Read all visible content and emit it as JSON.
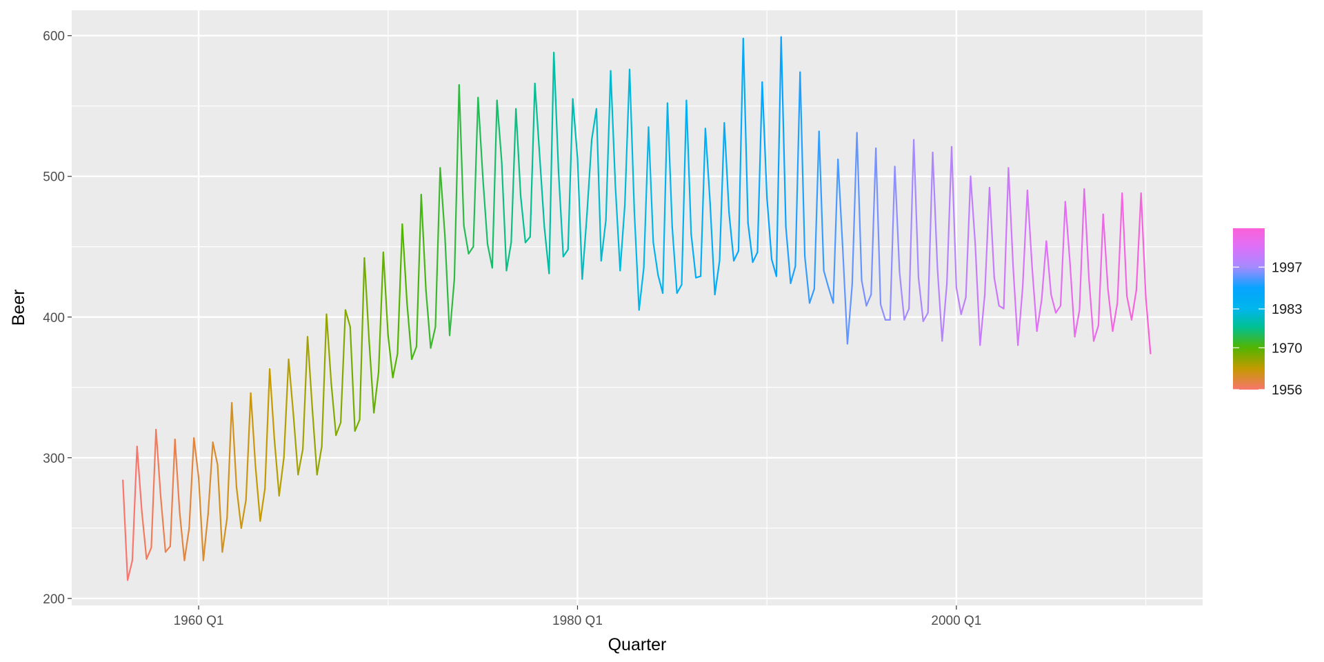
{
  "chart_data": {
    "type": "line",
    "title": "",
    "xlabel": "Quarter",
    "ylabel": "Beer",
    "xlim": [
      1953.3,
      2013.0
    ],
    "ylim": [
      195,
      618
    ],
    "x_ticks": [
      {
        "value": 1960.0,
        "label": "1960 Q1"
      },
      {
        "value": 1980.0,
        "label": "1980 Q1"
      },
      {
        "value": 2000.0,
        "label": "2000 Q1"
      }
    ],
    "x_minor_ticks": [
      1970.0,
      1990.0,
      2010.0
    ],
    "y_ticks": [
      200,
      300,
      400,
      500,
      600
    ],
    "y_minor_ticks": [
      250,
      350,
      450,
      550
    ],
    "grid": true,
    "background": "#ebebeb",
    "grid_color": "#ffffff",
    "colour_scale": {
      "variable": "year",
      "domain": [
        1956,
        2010
      ],
      "stops": [
        {
          "value": 1956,
          "color": "#f8766d"
        },
        {
          "value": 1963,
          "color": "#c49a00"
        },
        {
          "value": 1970,
          "color": "#53b400"
        },
        {
          "value": 1977,
          "color": "#00c094"
        },
        {
          "value": 1983,
          "color": "#00b6eb"
        },
        {
          "value": 1990,
          "color": "#06a4ff"
        },
        {
          "value": 1997,
          "color": "#a58aff"
        },
        {
          "value": 2004,
          "color": "#df70f8"
        },
        {
          "value": 2010,
          "color": "#fb61d7"
        }
      ]
    },
    "legend": {
      "placement": "right",
      "labels": [
        {
          "value": 1956,
          "label": "1956"
        },
        {
          "value": 1970,
          "label": "1970"
        },
        {
          "value": 1983,
          "label": "1983"
        },
        {
          "value": 1997,
          "label": "1997"
        }
      ]
    },
    "series": [
      {
        "x_start": 1956.0,
        "x_step": 0.25,
        "values": [
          284,
          213,
          227,
          308,
          262,
          228,
          236,
          320,
          272,
          233,
          237,
          313,
          261,
          227,
          250,
          314,
          286,
          227,
          260,
          311,
          295,
          233,
          257,
          339,
          279,
          250,
          270,
          346,
          294,
          255,
          278,
          363,
          313,
          273,
          300,
          370,
          331,
          288,
          306,
          386,
          335,
          288,
          308,
          402,
          353,
          316,
          325,
          405,
          393,
          319,
          327,
          442,
          383,
          332,
          361,
          446,
          387,
          357,
          374,
          466,
          410,
          370,
          379,
          487,
          419,
          378,
          393,
          506,
          458,
          387,
          427,
          565,
          465,
          445,
          450,
          556,
          500,
          452,
          435,
          554,
          510,
          433,
          453,
          548,
          486,
          453,
          457,
          566,
          515,
          464,
          431,
          588,
          503,
          443,
          448,
          555,
          513,
          427,
          473,
          526,
          548,
          440,
          469,
          575,
          493,
          433,
          480,
          576,
          475,
          405,
          435,
          535,
          453,
          430,
          417,
          552,
          464,
          417,
          423,
          554,
          459,
          428,
          429,
          534,
          481,
          416,
          440,
          538,
          474,
          440,
          447,
          598,
          467,
          439,
          446,
          567,
          485,
          441,
          429,
          599,
          464,
          424,
          436,
          574,
          443,
          410,
          420,
          532,
          433,
          421,
          410,
          512,
          449,
          381,
          423,
          531,
          426,
          408,
          416,
          520,
          409,
          398,
          398,
          507,
          432,
          398,
          406,
          526,
          428,
          397,
          403,
          517,
          435,
          383,
          424,
          521,
          421,
          402,
          414,
          500,
          451,
          380,
          416,
          492,
          428,
          408,
          406,
          506,
          435,
          380,
          421,
          490,
          435,
          390,
          412,
          454,
          416,
          403,
          408,
          482,
          438,
          386,
          405,
          491,
          427,
          383,
          394,
          473,
          420,
          390,
          410,
          488,
          415,
          398,
          419,
          488,
          414,
          374
        ]
      }
    ]
  }
}
